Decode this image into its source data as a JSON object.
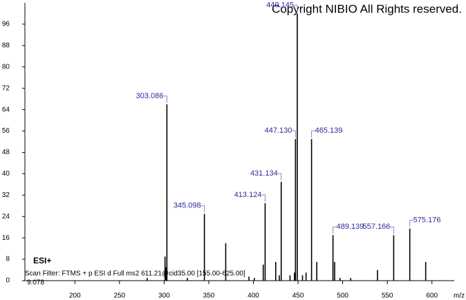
{
  "chart_data": {
    "type": "stick",
    "title": "Copyright NIBIO All Rights reserved.",
    "annotations": [
      "ESI+",
      "Scan Filter: FTMS + p ESI d Full ms2 611.21@cid35.00 [155.00-625.00]",
      "9.078"
    ],
    "x_label": "m/z",
    "x": [
      281,
      301,
      302,
      303.086,
      326,
      345.098,
      369,
      395,
      401,
      411,
      413.124,
      425,
      429,
      431.134,
      441,
      446,
      447.13,
      449.145,
      455,
      459,
      465.139,
      471,
      489.139,
      491,
      497,
      509,
      539,
      557.166,
      575.176,
      593
    ],
    "values": [
      1,
      9,
      5,
      66,
      1,
      25,
      14,
      1.5,
      1,
      6,
      29,
      7,
      2,
      37,
      2,
      3,
      53,
      100,
      2,
      3,
      53,
      7,
      17,
      7,
      1,
      1,
      4,
      17,
      19.5,
      7
    ],
    "x_labels": [
      null,
      null,
      null,
      "303.086",
      null,
      "345.098",
      null,
      null,
      null,
      null,
      "413.124",
      null,
      null,
      "431.134",
      null,
      null,
      "447.130",
      "449.145",
      null,
      null,
      "465.139",
      null,
      "489.139",
      null,
      null,
      null,
      null,
      "557.166",
      "575.176",
      null
    ],
    "color": "#000000",
    "label_color": "#2a2aa0",
    "xlim": [
      144,
      625
    ],
    "xticks": [
      200,
      250,
      300,
      350,
      400,
      450,
      500,
      550,
      600
    ],
    "ylim": [
      0,
      104
    ],
    "yticks": [
      0,
      8,
      16,
      24,
      32,
      40,
      48,
      56,
      64,
      72,
      80,
      88,
      96
    ]
  }
}
